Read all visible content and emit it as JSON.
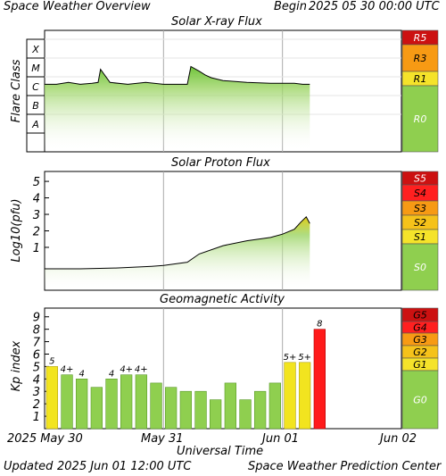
{
  "header": {
    "title": "Space Weather Overview",
    "begin_label": "Begin",
    "begin_time": "2025 05 30 00:00 UTC"
  },
  "footer": {
    "updated_label": "Updated",
    "updated_time": "2025 Jun 01 12:00 UTC",
    "credit": "Space Weather Prediction Center",
    "xaxis_title": "Universal Time"
  },
  "time_axis": {
    "ticks": [
      "2025 May 30",
      "May 31",
      "Jun 01",
      "Jun 02"
    ],
    "range_days": [
      0,
      3
    ]
  },
  "chart_data": [
    {
      "type": "line",
      "title": "Solar X-ray Flux",
      "ylabel": "Flare Class",
      "y_classes": [
        "X",
        "M",
        "C",
        "B",
        "A"
      ],
      "scale": [
        "R5",
        "R3",
        "R1",
        "R0"
      ],
      "scale_colors": [
        "#cc1111",
        "#f79a14",
        "#f5e32a",
        "#8fcf4f"
      ],
      "x_days": [
        0.0,
        0.1,
        0.2,
        0.3,
        0.4,
        0.45,
        0.47,
        0.55,
        0.7,
        0.85,
        1.0,
        1.2,
        1.23,
        1.3,
        1.35,
        1.4,
        1.5,
        1.7,
        1.9,
        2.1,
        2.17,
        2.23
      ],
      "y_flare_level": [
        2.6,
        2.6,
        2.7,
        2.6,
        2.65,
        2.7,
        3.4,
        2.7,
        2.6,
        2.7,
        2.6,
        2.6,
        3.55,
        3.3,
        3.1,
        2.95,
        2.8,
        2.7,
        2.65,
        2.65,
        2.6,
        2.6
      ]
    },
    {
      "type": "line",
      "title": "Solar Proton Flux",
      "ylabel": "Log10(pfu)",
      "yticks": [
        "1",
        "2",
        "3",
        "4",
        "5"
      ],
      "ylim": [
        -1.6,
        5.6
      ],
      "scale": [
        "S5",
        "S4",
        "S3",
        "S2",
        "S1",
        "S0"
      ],
      "scale_colors": [
        "#cc1111",
        "#ff2020",
        "#f79a14",
        "#f5c21a",
        "#f5e32a",
        "#8fcf4f"
      ],
      "x_days": [
        0.0,
        0.3,
        0.6,
        0.9,
        1.0,
        1.2,
        1.3,
        1.5,
        1.7,
        1.9,
        2.0,
        2.1,
        2.15,
        2.2,
        2.23
      ],
      "y_log_pfu": [
        -0.3,
        -0.3,
        -0.25,
        -0.15,
        -0.1,
        0.1,
        0.6,
        1.1,
        1.4,
        1.6,
        1.8,
        2.1,
        2.5,
        2.85,
        2.45
      ]
    },
    {
      "type": "bar",
      "title": "Geomagnetic Activity",
      "ylabel": "Kp index",
      "yticks": [
        "1",
        "2",
        "3",
        "4",
        "5",
        "6",
        "7",
        "8",
        "9"
      ],
      "ylim": [
        0,
        9.7
      ],
      "scale": [
        "G5",
        "G4",
        "G3",
        "G2",
        "G1",
        "G0"
      ],
      "scale_colors": [
        "#cc1111",
        "#ff2020",
        "#f79a14",
        "#f5c21a",
        "#f5e32a",
        "#8fcf4f"
      ],
      "bar_width_days": 0.125,
      "values": [
        5,
        4.33,
        4,
        3.33,
        4,
        4.33,
        4.33,
        3.67,
        3.33,
        3,
        3,
        2.33,
        3.67,
        2.33,
        3,
        3.67,
        5.33,
        5.33,
        8
      ],
      "labels": [
        "5",
        "4+",
        "4",
        "",
        "4",
        "4+",
        "4+",
        "",
        "",
        "",
        "",
        "",
        "",
        "",
        "",
        "",
        "5+",
        "5+",
        "8"
      ]
    }
  ]
}
